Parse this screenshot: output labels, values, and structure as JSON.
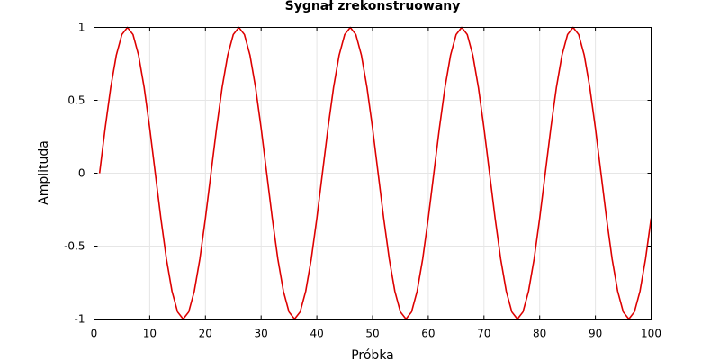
{
  "chart_data": {
    "type": "line",
    "title": "Sygnał zrekonstruowany",
    "xlabel": "Próbka",
    "ylabel": "Amplituda",
    "xlim": [
      0,
      100
    ],
    "ylim": [
      -1,
      1
    ],
    "xticks": [
      0,
      10,
      20,
      30,
      40,
      50,
      60,
      70,
      80,
      90,
      100
    ],
    "yticks": [
      -1,
      -0.5,
      0,
      0.5,
      1
    ],
    "xtick_labels": [
      "0",
      "10",
      "20",
      "30",
      "40",
      "50",
      "60",
      "70",
      "80",
      "90",
      "100"
    ],
    "ytick_labels": [
      "-1",
      "-0.5",
      "0",
      "0.5",
      "1"
    ],
    "grid": true,
    "line_color": "#dd0000",
    "series": [
      {
        "x": [
          1,
          2,
          3,
          4,
          5,
          6,
          7,
          8,
          9,
          10,
          11,
          12,
          13,
          14,
          15,
          16,
          17,
          18,
          19,
          20,
          21,
          22,
          23,
          24,
          25,
          26,
          27,
          28,
          29,
          30,
          31,
          32,
          33,
          34,
          35,
          36,
          37,
          38,
          39,
          40,
          41,
          42,
          43,
          44,
          45,
          46,
          47,
          48,
          49,
          50,
          51,
          52,
          53,
          54,
          55,
          56,
          57,
          58,
          59,
          60,
          61,
          62,
          63,
          64,
          65,
          66,
          67,
          68,
          69,
          70,
          71,
          72,
          73,
          74,
          75,
          76,
          77,
          78,
          79,
          80,
          81,
          82,
          83,
          84,
          85,
          86,
          87,
          88,
          89,
          90,
          91,
          92,
          93,
          94,
          95,
          96,
          97,
          98,
          99,
          100
        ],
        "values": [
          0,
          0.309,
          0.588,
          0.809,
          0.951,
          1,
          0.951,
          0.809,
          0.588,
          0.309,
          0,
          -0.309,
          -0.588,
          -0.809,
          -0.951,
          -1,
          -0.951,
          -0.809,
          -0.588,
          -0.309,
          0,
          0.309,
          0.588,
          0.809,
          0.951,
          1,
          0.951,
          0.809,
          0.588,
          0.309,
          0,
          -0.309,
          -0.588,
          -0.809,
          -0.951,
          -1,
          -0.951,
          -0.809,
          -0.588,
          -0.309,
          0,
          0.309,
          0.588,
          0.809,
          0.951,
          1,
          0.951,
          0.809,
          0.588,
          0.309,
          0,
          -0.309,
          -0.588,
          -0.809,
          -0.951,
          -1,
          -0.951,
          -0.809,
          -0.588,
          -0.309,
          0,
          0.309,
          0.588,
          0.809,
          0.951,
          1,
          0.951,
          0.809,
          0.588,
          0.309,
          0,
          -0.309,
          -0.588,
          -0.809,
          -0.951,
          -1,
          -0.951,
          -0.809,
          -0.588,
          -0.309,
          0,
          0.309,
          0.588,
          0.809,
          0.951,
          1,
          0.951,
          0.809,
          0.588,
          0.309,
          0,
          -0.309,
          -0.588,
          -0.809,
          -0.951,
          -1,
          -0.951,
          -0.809,
          -0.588,
          -0.309
        ]
      }
    ]
  }
}
